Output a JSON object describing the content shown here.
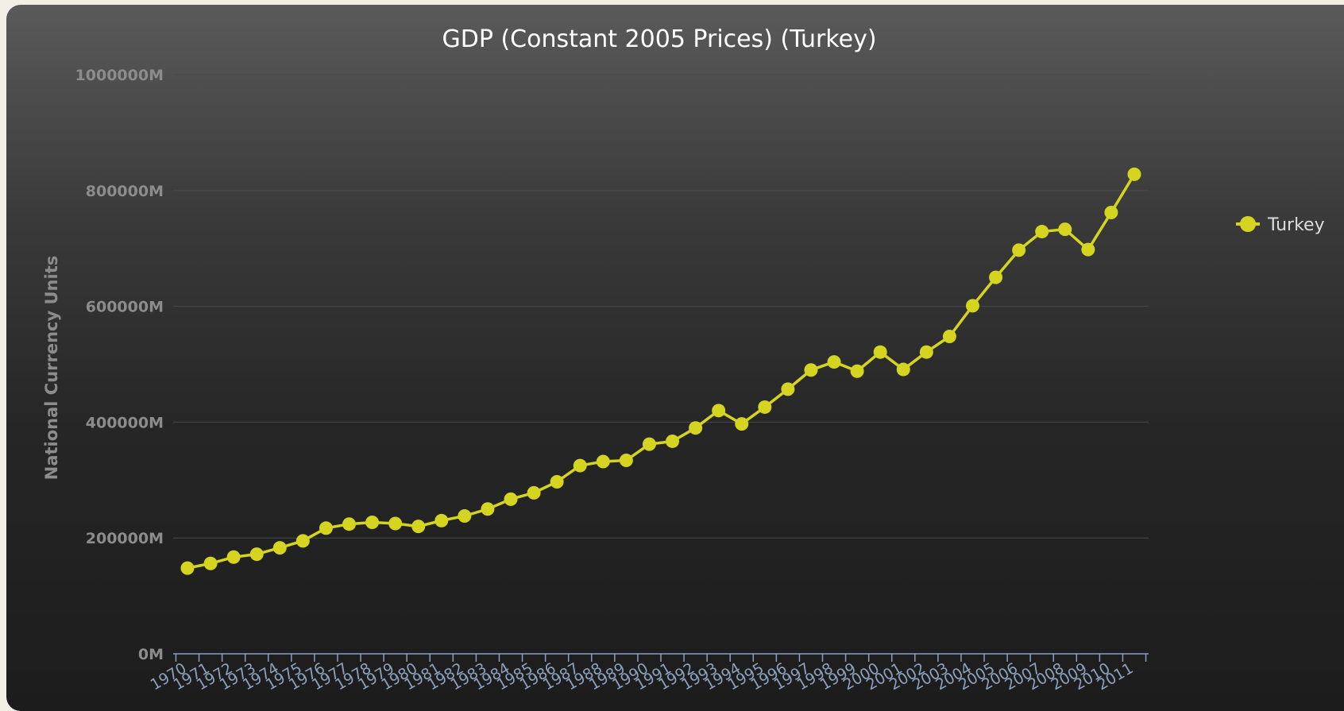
{
  "chart_data": {
    "type": "line",
    "title": "GDP (Constant 2005 Prices) (Turkey)",
    "ylabel": "National Currency Units",
    "xlabel": "",
    "ylim": [
      0,
      1000000
    ],
    "yticks": [
      0,
      200000,
      400000,
      600000,
      800000,
      1000000
    ],
    "ytick_labels": [
      "0M",
      "200000M",
      "400000M",
      "600000M",
      "800000M",
      "1000000M"
    ],
    "legend_position": "right",
    "grid": true,
    "line_color": "#d4d421",
    "x": [
      "1970",
      "1971",
      "1972",
      "1973",
      "1974",
      "1975",
      "1976",
      "1977",
      "1978",
      "1979",
      "1980",
      "1981",
      "1982",
      "1983",
      "1984",
      "1985",
      "1986",
      "1987",
      "1988",
      "1989",
      "1990",
      "1991",
      "1992",
      "1993",
      "1994",
      "1995",
      "1996",
      "1997",
      "1998",
      "1999",
      "2000",
      "2001",
      "2002",
      "2003",
      "2004",
      "2005",
      "2006",
      "2007",
      "2008",
      "2009",
      "2010",
      "2011"
    ],
    "series": [
      {
        "name": "Turkey",
        "values": [
          148000,
          156000,
          167000,
          172000,
          183000,
          195000,
          217000,
          224000,
          227000,
          225000,
          220000,
          230000,
          238000,
          250000,
          267000,
          278000,
          297000,
          325000,
          332000,
          334000,
          362000,
          367000,
          390000,
          420000,
          397000,
          426000,
          457000,
          490000,
          504000,
          488000,
          521000,
          491000,
          521000,
          548000,
          601000,
          650000,
          697000,
          729000,
          733000,
          698000,
          762000,
          828000
        ]
      }
    ]
  }
}
